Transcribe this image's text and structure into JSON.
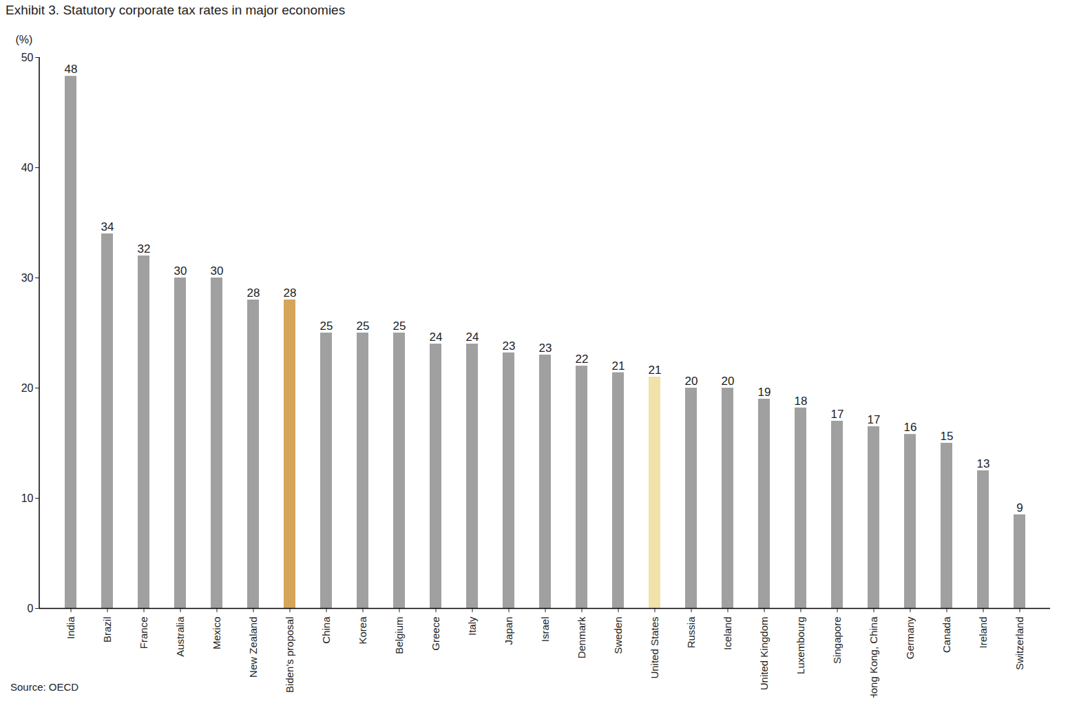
{
  "chart_data": {
    "type": "bar",
    "title": "Exhibit 3. Statutory corporate tax rates in major economies",
    "y_label": "(%)",
    "source": "Source: OECD",
    "categories": [
      "India",
      "Brazil",
      "France",
      "Australia",
      "Mexico",
      "New Zealand",
      "Biden's proposal",
      "China",
      "Korea",
      "Belgium",
      "Greece",
      "Italy",
      "Japan",
      "Israel",
      "Denmark",
      "Sweden",
      "United States",
      "Russia",
      "Iceland",
      "United Kingdom",
      "Luxembourg",
      "Singapore",
      "Hong Kong, China",
      "Germany",
      "Canada",
      "Ireland",
      "Switzerland"
    ],
    "values": [
      48.3,
      34,
      32,
      30,
      30,
      28,
      28,
      25,
      25,
      25,
      24,
      24,
      23.2,
      23,
      22,
      21.4,
      21,
      20,
      20,
      19,
      18.2,
      17,
      16.5,
      15.8,
      15,
      12.5,
      8.5
    ],
    "value_labels": [
      "48",
      "34",
      "32",
      "30",
      "30",
      "28",
      "28",
      "25",
      "25",
      "25",
      "24",
      "24",
      "23",
      "23",
      "22",
      "21",
      "21",
      "20",
      "20",
      "19",
      "18",
      "17",
      "17",
      "16",
      "15",
      "13",
      "9"
    ],
    "colors": [
      "#a0a0a0",
      "#a0a0a0",
      "#a0a0a0",
      "#a0a0a0",
      "#a0a0a0",
      "#a0a0a0",
      "#d4a55a",
      "#a0a0a0",
      "#a0a0a0",
      "#a0a0a0",
      "#a0a0a0",
      "#a0a0a0",
      "#a0a0a0",
      "#a0a0a0",
      "#a0a0a0",
      "#a0a0a0",
      "#f0e2a8",
      "#a0a0a0",
      "#a0a0a0",
      "#a0a0a0",
      "#a0a0a0",
      "#a0a0a0",
      "#a0a0a0",
      "#a0a0a0",
      "#a0a0a0",
      "#a0a0a0",
      "#a0a0a0"
    ],
    "ylim": [
      0,
      50
    ],
    "yticks": [
      0,
      10,
      20,
      30,
      40,
      50
    ],
    "data_labels": true,
    "grid": false
  }
}
